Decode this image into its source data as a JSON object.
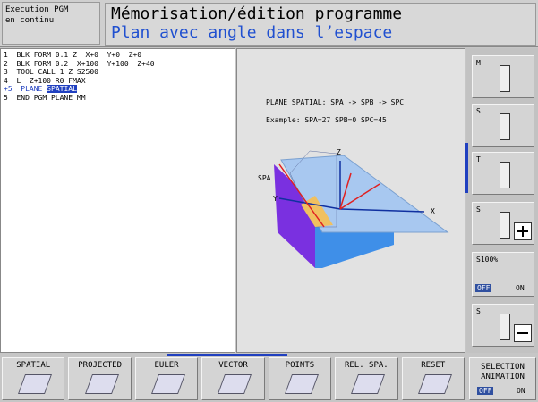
{
  "header": {
    "mode": [
      "Execution PGM",
      "en continu"
    ],
    "title": "Mémorisation/édition programme",
    "subtitle": "Plan avec angle dans l’espace"
  },
  "program": {
    "lines": [
      "1  BLK FORM 0.1 Z  X+0  Y+0  Z+0",
      "2  BLK FORM 0.2  X+100  Y+100  Z+40",
      "3  TOOL CALL 1 Z S2500",
      "4  L  Z+100 R0 FMAX",
      {
        "text": "+5  PLANE ",
        "highlight": "SPATIAL"
      },
      "5  END PGM PLANE MM"
    ]
  },
  "help": {
    "lines": [
      "PLANE SPATIAL: SPA -> SPB -> SPC",
      "Example: SPA=27 SPB=0 SPC=45"
    ],
    "diagram": {
      "z": "Z",
      "spa": "SPA",
      "y": "Y",
      "x": "X"
    }
  },
  "sidebar": {
    "buttons": [
      "M",
      "S",
      "T",
      "S",
      "S"
    ],
    "override": {
      "label": "S100%",
      "off": "OFF",
      "on": "ON"
    }
  },
  "softkeys": [
    "SPATIAL",
    "PROJECTED",
    "EULER",
    "VECTOR",
    "POINTS",
    "REL. SPA.",
    "RESET"
  ],
  "selection": {
    "lines": [
      "SELECTION",
      "ANIMATION"
    ],
    "off": "OFF",
    "on": "ON"
  }
}
